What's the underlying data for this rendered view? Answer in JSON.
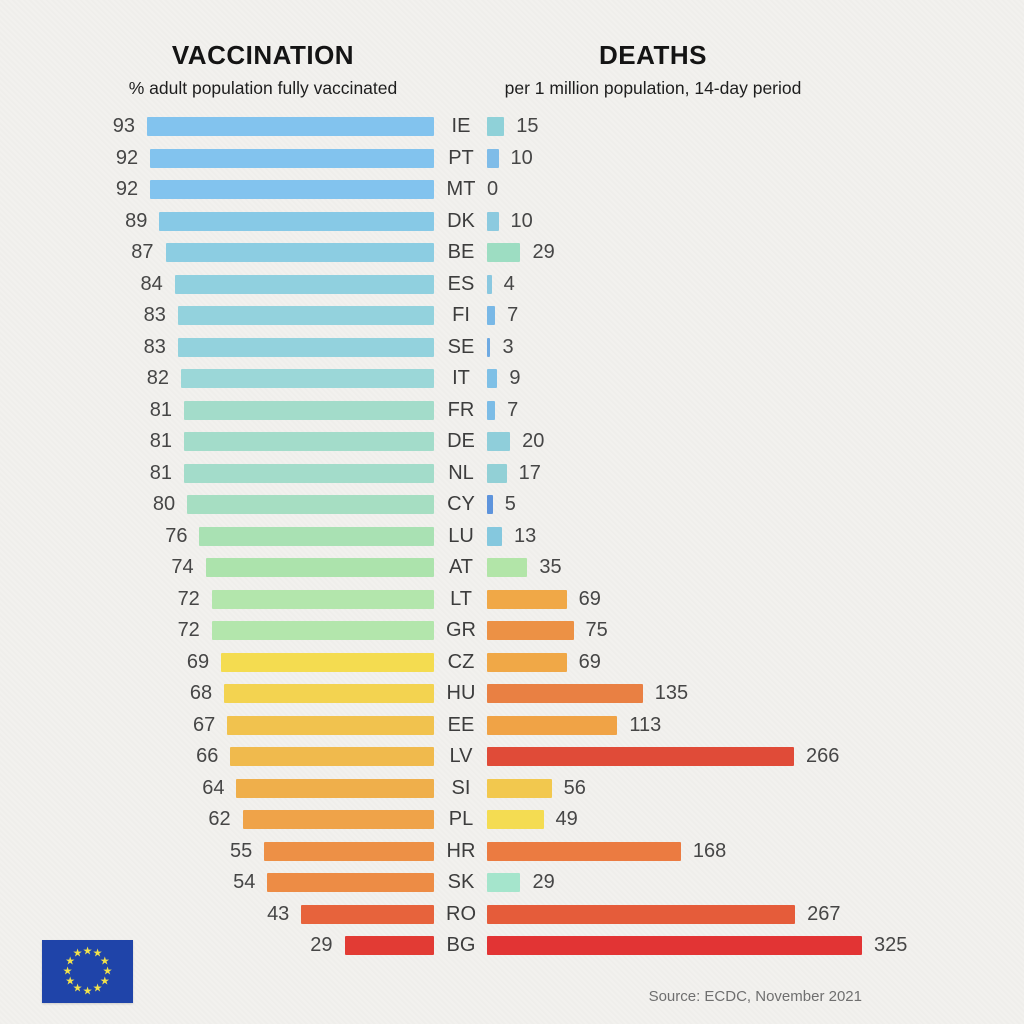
{
  "header": {
    "left_title": "VACCINATION",
    "left_subtitle": "% adult population fully vaccinated",
    "right_title": "DEATHS",
    "right_subtitle": "per 1 million population, 14-day period"
  },
  "source": "Source: ECDC, November 2021",
  "flag": {
    "icon": "eu-flag-icon",
    "blue": "#1f44a9",
    "star_color": "#f2e24c",
    "star_count": 12
  },
  "chart_data": {
    "type": "bar",
    "orientation": "horizontal-paired",
    "title": "Vaccination vs Deaths in EU countries",
    "series": [
      {
        "name": "Vaccination",
        "unit": "% adult population fully vaccinated",
        "axis": "left, right-aligned bars",
        "range": [
          0,
          100
        ]
      },
      {
        "name": "Deaths",
        "unit": "per 1 million population, 14-day period",
        "axis": "right, left-aligned bars",
        "range": [
          0,
          325
        ]
      }
    ],
    "grid": false,
    "legend": false,
    "value_labels": true,
    "sorted_by": "vaccination descending",
    "categories": [
      "IE",
      "PT",
      "MT",
      "DK",
      "BE",
      "ES",
      "FI",
      "SE",
      "IT",
      "FR",
      "DE",
      "NL",
      "CY",
      "LU",
      "AT",
      "LT",
      "GR",
      "CZ",
      "HU",
      "EE",
      "LV",
      "SI",
      "PL",
      "HR",
      "SK",
      "RO",
      "BG"
    ],
    "rows": [
      {
        "code": "IE",
        "vaccination": 93,
        "deaths": 15,
        "vacc_color": "#82c3ee",
        "death_color": "#8fd1d8"
      },
      {
        "code": "PT",
        "vaccination": 92,
        "deaths": 10,
        "vacc_color": "#82c3ee",
        "death_color": "#7fbce8"
      },
      {
        "code": "MT",
        "vaccination": 92,
        "deaths": 0,
        "vacc_color": "#82c3ee",
        "death_color": "#7fbce8"
      },
      {
        "code": "DK",
        "vaccination": 89,
        "deaths": 10,
        "vacc_color": "#87c9e6",
        "death_color": "#8ccadf"
      },
      {
        "code": "BE",
        "vaccination": 87,
        "deaths": 29,
        "vacc_color": "#8ccde2",
        "death_color": "#9dddc2"
      },
      {
        "code": "ES",
        "vaccination": 84,
        "deaths": 4,
        "vacc_color": "#90d0df",
        "death_color": "#8ac8e0"
      },
      {
        "code": "FI",
        "vaccination": 83,
        "deaths": 7,
        "vacc_color": "#93d2dd",
        "death_color": "#79b8e6"
      },
      {
        "code": "SE",
        "vaccination": 83,
        "deaths": 3,
        "vacc_color": "#93d2dd",
        "death_color": "#6faae2"
      },
      {
        "code": "IT",
        "vaccination": 82,
        "deaths": 9,
        "vacc_color": "#9bd7d8",
        "death_color": "#7fc0e6"
      },
      {
        "code": "FR",
        "vaccination": 81,
        "deaths": 7,
        "vacc_color": "#a3dcca",
        "death_color": "#7cbce6"
      },
      {
        "code": "DE",
        "vaccination": 81,
        "deaths": 20,
        "vacc_color": "#a3dcca",
        "death_color": "#8fceda"
      },
      {
        "code": "NL",
        "vaccination": 81,
        "deaths": 17,
        "vacc_color": "#a3dcca",
        "death_color": "#92d0d6"
      },
      {
        "code": "CY",
        "vaccination": 80,
        "deaths": 5,
        "vacc_color": "#a6dec2",
        "death_color": "#5e94dc"
      },
      {
        "code": "LU",
        "vaccination": 76,
        "deaths": 13,
        "vacc_color": "#a9e1b3",
        "death_color": "#85c8de"
      },
      {
        "code": "AT",
        "vaccination": 74,
        "deaths": 35,
        "vacc_color": "#ace3ac",
        "death_color": "#b2e5a8"
      },
      {
        "code": "LT",
        "vaccination": 72,
        "deaths": 69,
        "vacc_color": "#b3e6ac",
        "death_color": "#f0a847"
      },
      {
        "code": "GR",
        "vaccination": 72,
        "deaths": 75,
        "vacc_color": "#b3e6ac",
        "death_color": "#ec9145"
      },
      {
        "code": "CZ",
        "vaccination": 69,
        "deaths": 69,
        "vacc_color": "#f4dc50",
        "death_color": "#f0a847"
      },
      {
        "code": "HU",
        "vaccination": 68,
        "deaths": 135,
        "vacc_color": "#f3d350",
        "death_color": "#e98043"
      },
      {
        "code": "EE",
        "vaccination": 67,
        "deaths": 113,
        "vacc_color": "#f1c24e",
        "death_color": "#f0a346"
      },
      {
        "code": "LV",
        "vaccination": 66,
        "deaths": 266,
        "vacc_color": "#f0ba4d",
        "death_color": "#e04b38"
      },
      {
        "code": "SI",
        "vaccination": 64,
        "deaths": 56,
        "vacc_color": "#efaf4b",
        "death_color": "#f2c84e"
      },
      {
        "code": "PL",
        "vaccination": 62,
        "deaths": 49,
        "vacc_color": "#efa349",
        "death_color": "#f4dc52"
      },
      {
        "code": "HR",
        "vaccination": 55,
        "deaths": 168,
        "vacc_color": "#ed9046",
        "death_color": "#eb7b41"
      },
      {
        "code": "SK",
        "vaccination": 54,
        "deaths": 29,
        "vacc_color": "#ed8c45",
        "death_color": "#a5e5cc"
      },
      {
        "code": "RO",
        "vaccination": 43,
        "deaths": 267,
        "vacc_color": "#e7633c",
        "death_color": "#e55c3a"
      },
      {
        "code": "BG",
        "vaccination": 29,
        "deaths": 325,
        "vacc_color": "#e23b34",
        "death_color": "#e23434"
      }
    ]
  }
}
